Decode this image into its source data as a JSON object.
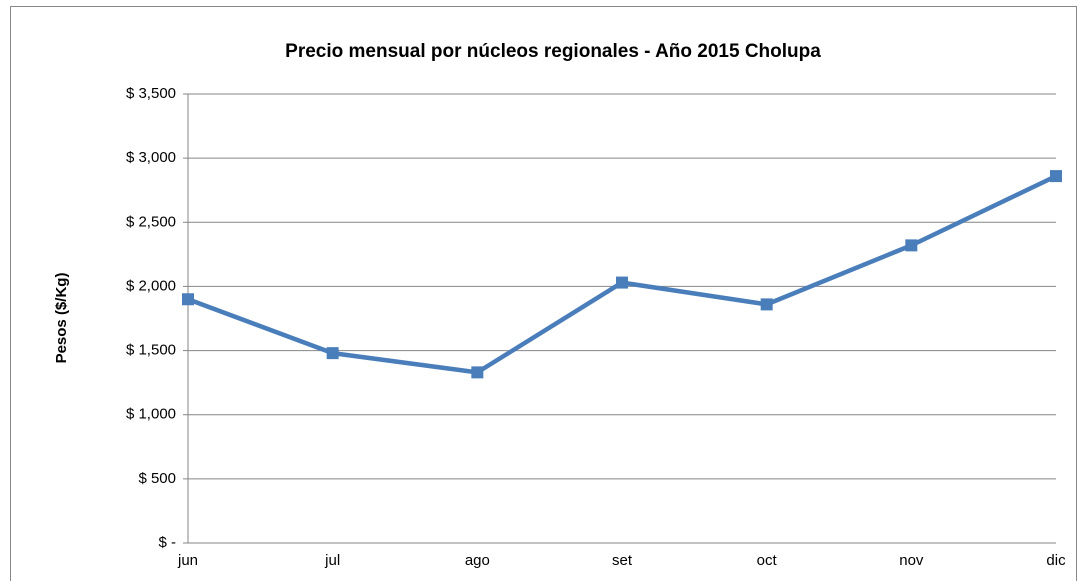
{
  "chart_data": {
    "type": "line",
    "title": "Precio mensual por núcleos regionales -  Año 2015 Cholupa",
    "y_label": "Pesos ($/Kg)",
    "categories": [
      "jun",
      "jul",
      "ago",
      "set",
      "oct",
      "nov",
      "dic"
    ],
    "values": [
      1900,
      1480,
      1330,
      2030,
      1860,
      2320,
      2860
    ],
    "color": "#4a7ebb",
    "ylim": [
      0,
      3500
    ],
    "yticks": [
      {
        "value": 0,
        "label": "$ -"
      },
      {
        "value": 500,
        "label": "$ 500"
      },
      {
        "value": 1000,
        "label": "$ 1,000"
      },
      {
        "value": 1500,
        "label": "$ 1,500"
      },
      {
        "value": 2000,
        "label": "$ 2,000"
      },
      {
        "value": 2500,
        "label": "$ 2,500"
      },
      {
        "value": 3000,
        "label": "$ 3,000"
      },
      {
        "value": 3500,
        "label": "$ 3,500"
      }
    ],
    "grid": true
  }
}
